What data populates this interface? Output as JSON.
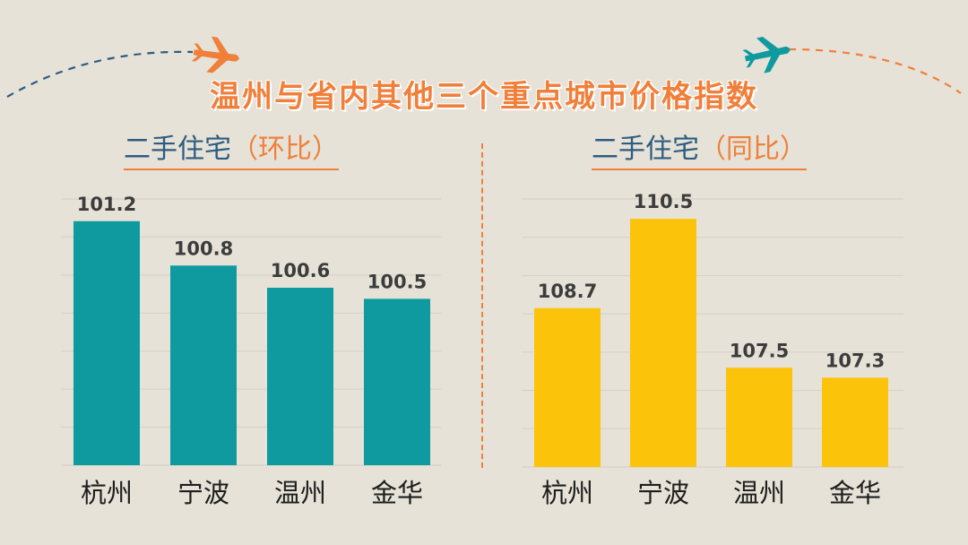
{
  "title": "温州与省内其他三个重点城市价格指数",
  "subtitles": [
    {
      "part1": "二手住宅",
      "part2": "（环比）"
    },
    {
      "part1": "二手住宅",
      "part2": "（同比）"
    }
  ],
  "colors": {
    "background": "#e6e2d7",
    "title": "#f07f3a",
    "subtitle_text": "#2d5c82",
    "subtitle_accent": "#f07f3a",
    "bar_mom": "#0f9aa0",
    "bar_yoy": "#fcc30b",
    "value_label": "#3c3c3c",
    "category_label": "#1e1e1e"
  },
  "chart_data": [
    {
      "type": "bar",
      "title": "二手住宅（环比）",
      "categories": [
        "杭州",
        "宁波",
        "温州",
        "金华"
      ],
      "values": [
        101.2,
        100.8,
        100.6,
        100.5
      ],
      "data_labels": [
        "101.2",
        "100.8",
        "100.6",
        "100.5"
      ],
      "ylim": [
        99.0,
        101.4
      ],
      "grid": true
    },
    {
      "type": "bar",
      "title": "二手住宅（同比）",
      "categories": [
        "杭州",
        "宁波",
        "温州",
        "金华"
      ],
      "values": [
        108.7,
        110.5,
        107.5,
        107.3
      ],
      "data_labels": [
        "108.7",
        "110.5",
        "107.5",
        "107.3"
      ],
      "ylim": [
        105.5,
        110.9
      ],
      "grid": true
    }
  ]
}
